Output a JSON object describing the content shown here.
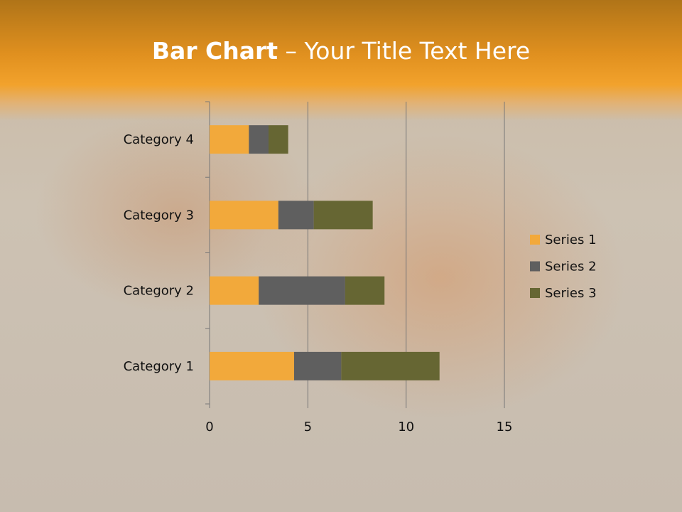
{
  "title": {
    "bold": "Bar Chart",
    "rest": " – Your Title Text Here"
  },
  "chart_data": {
    "type": "bar",
    "orientation": "horizontal",
    "stacked": true,
    "categories": [
      "Category 1",
      "Category 2",
      "Category 3",
      "Category 4"
    ],
    "series": [
      {
        "name": "Series 1",
        "values": [
          4.3,
          2.5,
          3.5,
          2
        ],
        "color": "#f2a93b"
      },
      {
        "name": "Series 2",
        "values": [
          2.4,
          4.4,
          1.8,
          1
        ],
        "color": "#5f5f5f"
      },
      {
        "name": "Series 3",
        "values": [
          5,
          2,
          3,
          1
        ],
        "color": "#666633"
      }
    ],
    "xlim": [
      0,
      15
    ],
    "xticks": [
      0,
      5,
      10,
      15
    ],
    "grid": "vertical",
    "legend": "right"
  }
}
